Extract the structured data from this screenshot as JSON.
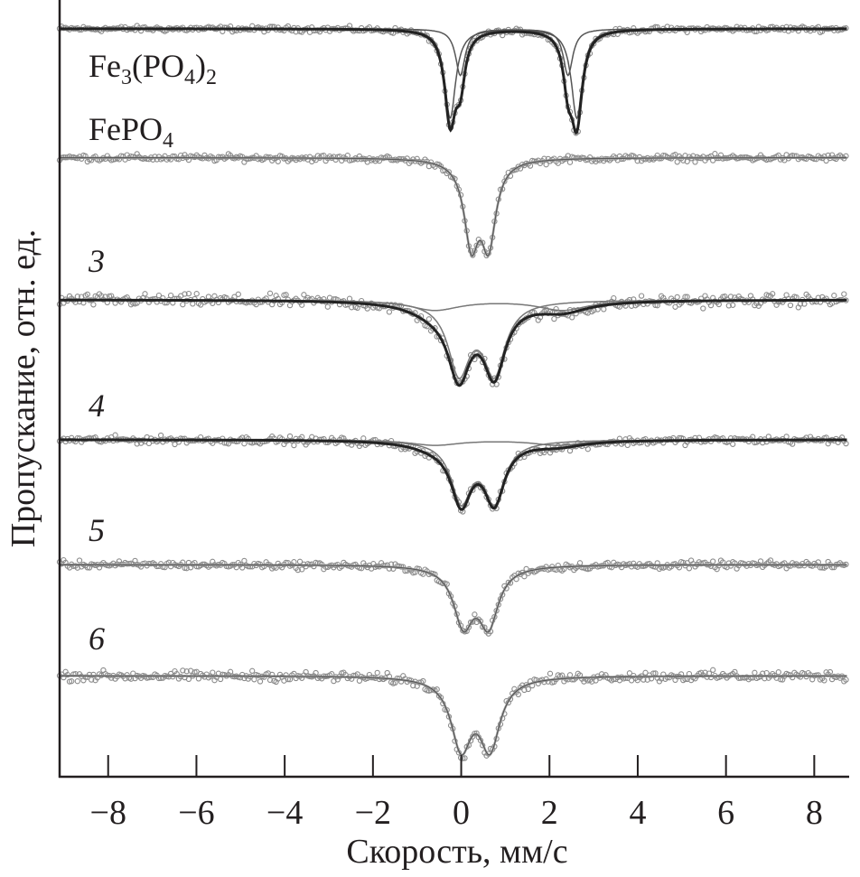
{
  "chart_data": {
    "type": "line",
    "title": "",
    "xlabel": "Скорость, мм/с",
    "ylabel": "Пропускание, отн. ед.",
    "xlim": [
      -9.1,
      8.75
    ],
    "xticks": [
      -8,
      -6,
      -4,
      -2,
      0,
      2,
      4,
      6,
      8
    ],
    "xtick_labels": [
      "−8",
      "−6",
      "−4",
      "−2",
      "0",
      "2",
      "4",
      "6",
      "8"
    ],
    "grid": false,
    "ylim": [
      0,
      100
    ],
    "series": [
      {
        "name": "Fe3(PO4)2",
        "label_parts": [
          "Fe",
          "3",
          "(PO",
          "4",
          ")",
          "2"
        ],
        "baseline": 96.3,
        "noise": 0.25,
        "components": [
          {
            "centers": [
              -0.25,
              2.62
            ],
            "depth": 11.5,
            "hwhm": 0.15
          },
          {
            "centers": [
              -0.02,
              2.42
            ],
            "depth": 6.0,
            "hwhm": 0.13
          }
        ]
      },
      {
        "name": "FePO4",
        "label_parts": [
          "FePO",
          "4"
        ],
        "baseline": 79.7,
        "noise": 0.3,
        "components": [
          {
            "centers": [
              0.23,
              0.62
            ],
            "depth": 10.4,
            "hwhm": 0.2
          }
        ]
      },
      {
        "name": "3",
        "baseline": 61.4,
        "noise": 0.55,
        "components": [
          {
            "centers": [
              -0.05,
              0.75
            ],
            "depth": 9.0,
            "hwhm": 0.3
          },
          {
            "centers": [
              -0.6,
              2.3
            ],
            "depth": 1.3,
            "hwhm": 0.7
          }
        ]
      },
      {
        "name": "4",
        "baseline": 43.4,
        "noise": 0.35,
        "components": [
          {
            "centers": [
              0.0,
              0.75
            ],
            "depth": 7.6,
            "hwhm": 0.28
          },
          {
            "centers": [
              -0.6,
              2.2
            ],
            "depth": 0.7,
            "hwhm": 0.7
          }
        ]
      },
      {
        "name": "5",
        "baseline": 27.3,
        "noise": 0.35,
        "components": [
          {
            "centers": [
              0.05,
              0.62
            ],
            "depth": 7.3,
            "hwhm": 0.27
          }
        ]
      },
      {
        "name": "6",
        "baseline": 13.0,
        "noise": 0.45,
        "components": [
          {
            "centers": [
              0.0,
              0.65
            ],
            "depth": 8.8,
            "hwhm": 0.28
          }
        ]
      }
    ]
  }
}
